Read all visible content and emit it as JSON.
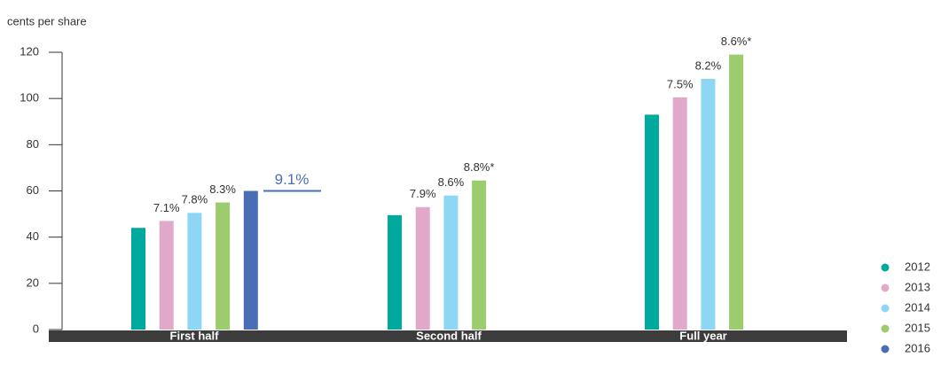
{
  "chart_data": {
    "type": "bar",
    "y_label": "cents per share",
    "categories": [
      "First half",
      "Second half",
      "Full year"
    ],
    "ylim": [
      0,
      120
    ],
    "yticks": [
      0,
      20,
      40,
      60,
      80,
      100,
      120
    ],
    "legend": "bottom-right",
    "series": [
      {
        "name": "2012",
        "color": "#00a99d",
        "values": [
          44,
          49.5,
          93
        ],
        "labels": [
          null,
          null,
          null
        ]
      },
      {
        "name": "2013",
        "color": "#e0a9c9",
        "values": [
          47,
          53,
          100.5
        ],
        "labels": [
          "7.1%",
          "7.9%",
          "7.5%"
        ]
      },
      {
        "name": "2014",
        "color": "#8dd7f5",
        "values": [
          50.5,
          58,
          108.5
        ],
        "labels": [
          "7.8%",
          "8.6%",
          "8.2%"
        ]
      },
      {
        "name": "2015",
        "color": "#9ccc6e",
        "values": [
          55,
          64.5,
          119
        ],
        "labels": [
          "8.3%",
          "8.8%*",
          "8.6%*"
        ]
      },
      {
        "name": "2016",
        "color": "#4a6db5",
        "values": [
          60,
          null,
          null
        ],
        "labels": [
          "9.1%",
          null,
          null
        ]
      }
    ]
  }
}
